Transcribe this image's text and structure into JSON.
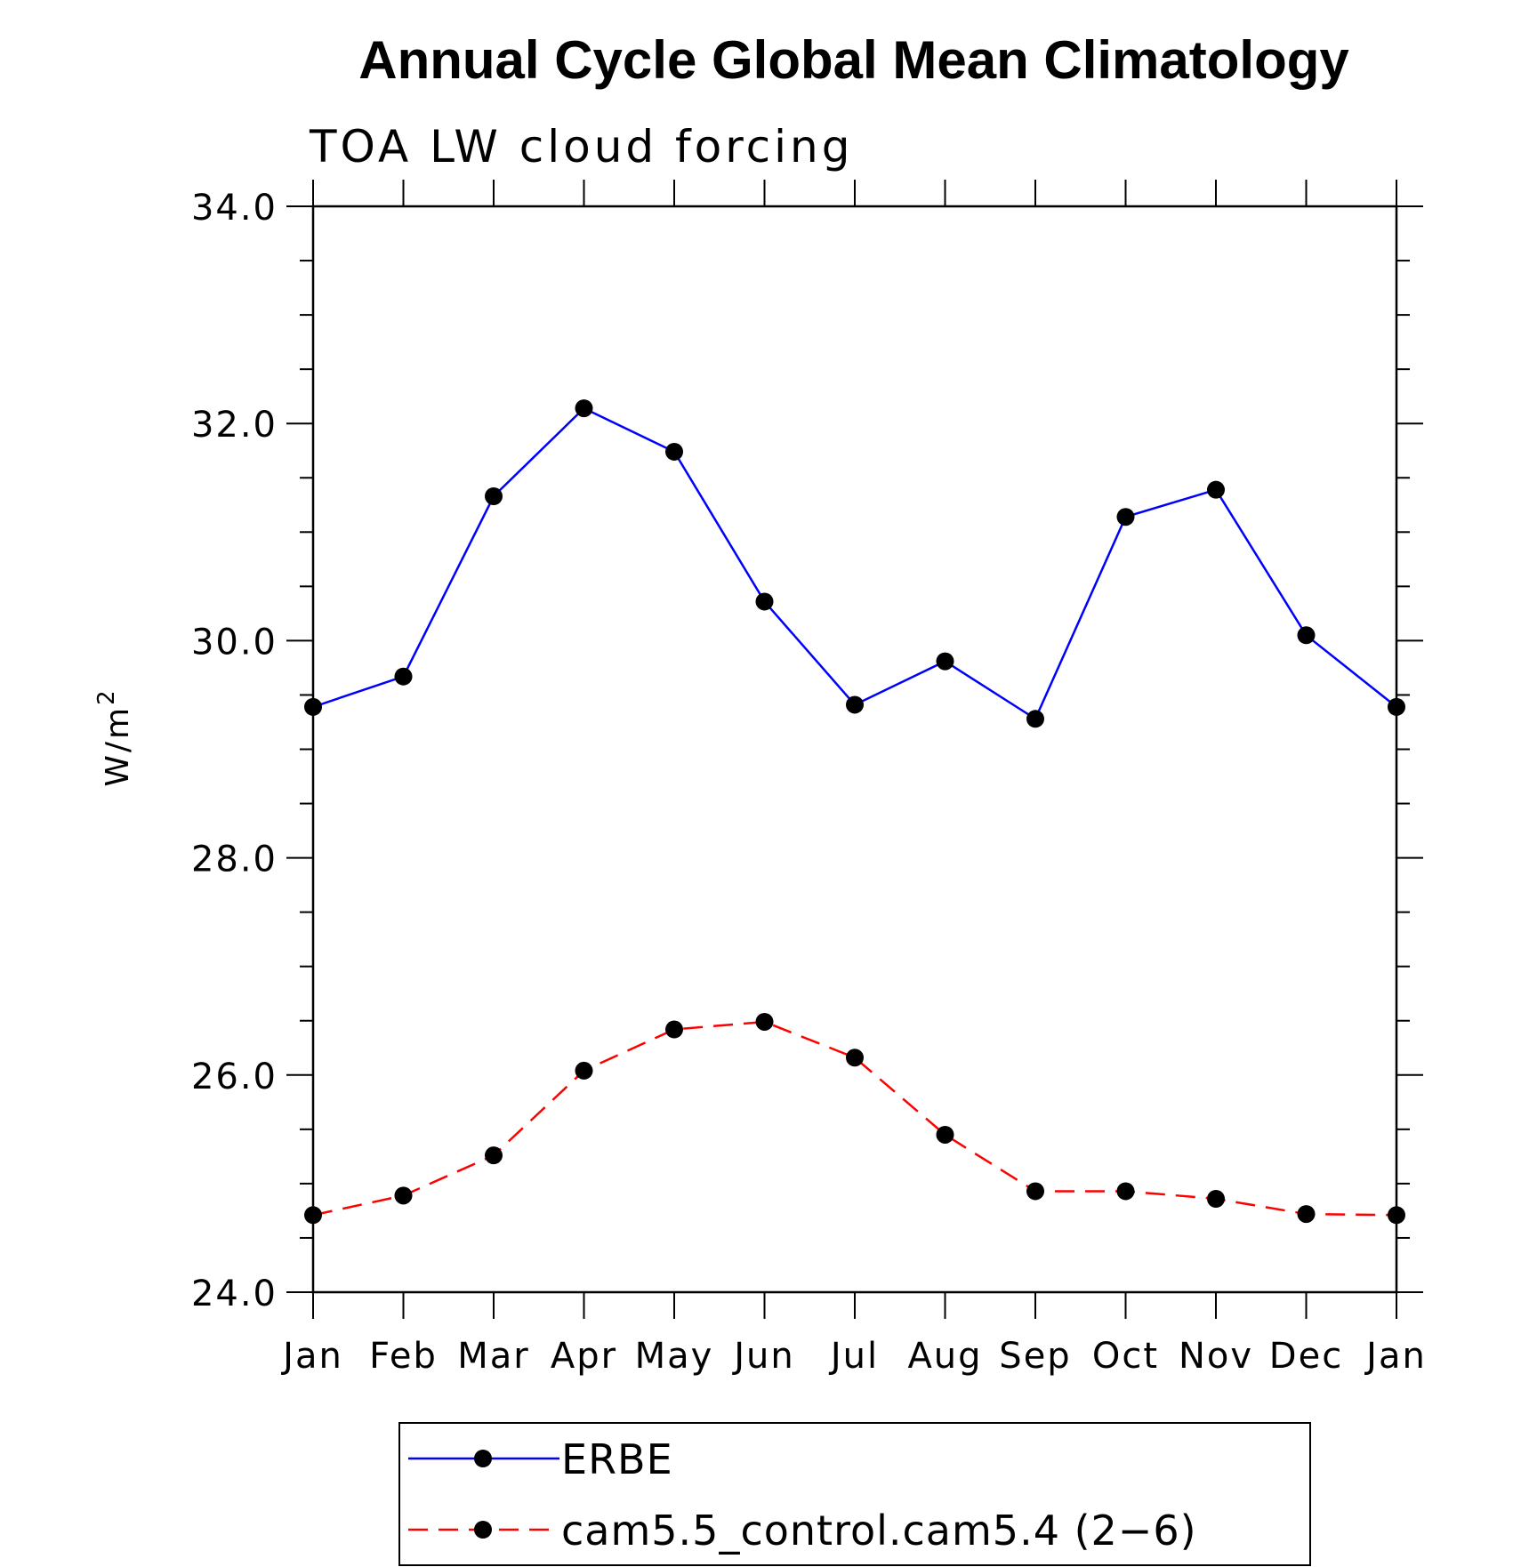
{
  "chart_data": {
    "type": "line",
    "title": "Annual Cycle Global Mean Climatology",
    "subtitle": "TOA LW cloud forcing",
    "ylabel": "W/m",
    "ylabel_superscript": "2",
    "xlabel": "",
    "categories": [
      "Jan",
      "Feb",
      "Mar",
      "Apr",
      "May",
      "Jun",
      "Jul",
      "Aug",
      "Sep",
      "Oct",
      "Nov",
      "Dec",
      "Jan"
    ],
    "ylim": [
      24.0,
      34.0
    ],
    "yticks": [
      "24.0",
      "26.0",
      "28.0",
      "30.0",
      "32.0",
      "34.0"
    ],
    "grid": false,
    "legend_position": "bottom",
    "series": [
      {
        "name": "ERBE",
        "color": "#0000ff",
        "line_style": "solid",
        "marker": "filled-circle",
        "values": [
          29.39,
          29.67,
          31.33,
          32.14,
          31.74,
          30.36,
          29.41,
          29.81,
          29.28,
          31.14,
          31.39,
          30.05,
          29.39
        ]
      },
      {
        "name": "cam5.5_control.cam5.4 (2−6)",
        "color": "#ff0000",
        "line_style": "dashed",
        "marker": "filled-circle",
        "values": [
          24.71,
          24.89,
          25.26,
          26.04,
          26.42,
          26.49,
          26.16,
          25.45,
          24.93,
          24.93,
          24.86,
          24.72,
          24.71
        ]
      }
    ]
  }
}
